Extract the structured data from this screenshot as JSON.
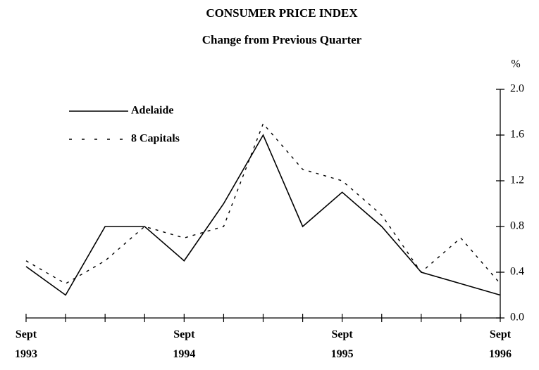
{
  "chart_data": {
    "type": "line",
    "title": "CONSUMER PRICE INDEX",
    "subtitle": "Change from Previous Quarter",
    "y_axis_label": "%",
    "categories": [
      "Sept\n1993",
      null,
      null,
      null,
      "Sept\n1994",
      null,
      null,
      null,
      "Sept\n1995",
      null,
      null,
      null,
      "Sept\n1996"
    ],
    "series": [
      {
        "name": "Adelaide",
        "color": "#000000",
        "dash": "solid",
        "values": [
          0.45,
          0.2,
          0.8,
          0.8,
          0.5,
          1.0,
          1.6,
          0.8,
          1.1,
          0.8,
          0.4,
          0.3,
          0.2
        ]
      },
      {
        "name": "8 Capitals",
        "color": "#000000",
        "dash": "dashed",
        "values": [
          0.5,
          0.3,
          0.5,
          0.8,
          0.7,
          0.8,
          1.7,
          1.3,
          1.2,
          0.9,
          0.4,
          0.7,
          0.3
        ]
      }
    ],
    "ylim": [
      0,
      2
    ],
    "yticks": [
      {
        "value": 0,
        "label": "0.0"
      },
      0.4,
      0.8,
      1.2,
      1.6,
      {
        "value": 2,
        "label": "2.0"
      }
    ],
    "y_axis_side": "right",
    "grid": false,
    "legend": "top-left"
  }
}
